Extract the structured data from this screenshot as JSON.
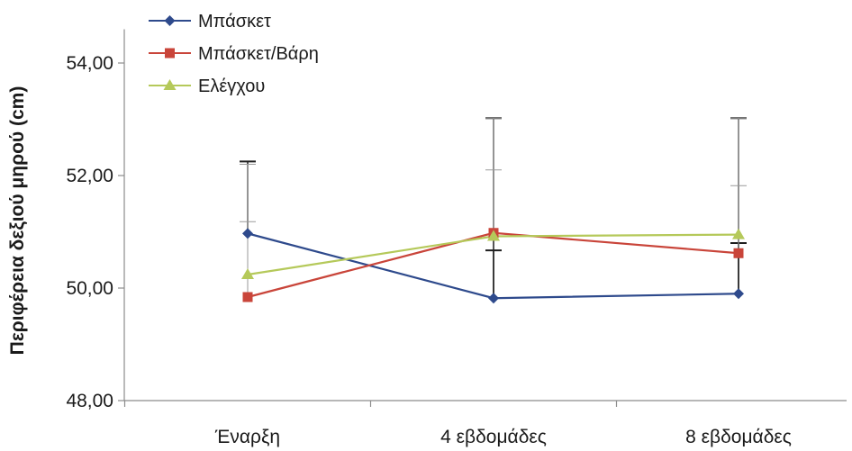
{
  "chart_data": {
    "type": "line",
    "title": "",
    "ylabel": "Περιφέρεια δεξιού μηρού (cm)",
    "xlabel": "",
    "categories": [
      "Έναρξη",
      "4 εβδομάδες",
      "8 εβδομάδες"
    ],
    "ylim": [
      48,
      54.6
    ],
    "yticks": [
      48,
      50,
      52,
      54
    ],
    "ytick_labels": [
      "48,00",
      "50,00",
      "52,00",
      "54,00"
    ],
    "grid": false,
    "legend_position": "top-left",
    "series": [
      {
        "name": "Μπάσκετ",
        "color": "#2e4a8c",
        "marker": "diamond",
        "values": [
          50.97,
          49.82,
          49.9
        ],
        "error_upper": [
          52.25,
          53.02,
          53.02
        ],
        "error_lower": [
          null,
          50.67,
          50.8
        ]
      },
      {
        "name": "Μπάσκετ/Βάρη",
        "color": "#c9453a",
        "marker": "square",
        "values": [
          49.84,
          50.98,
          50.62
        ],
        "error_upper": [
          52.2,
          52.1,
          51.82
        ],
        "error_lower": [
          null,
          null,
          null
        ]
      },
      {
        "name": "Ελέγχου",
        "color": "#b5c95a",
        "marker": "triangle",
        "values": [
          50.24,
          50.92,
          50.95
        ],
        "error_upper": [
          51.18,
          53.02,
          53.02
        ],
        "error_lower": [
          null,
          null,
          null
        ]
      }
    ]
  }
}
